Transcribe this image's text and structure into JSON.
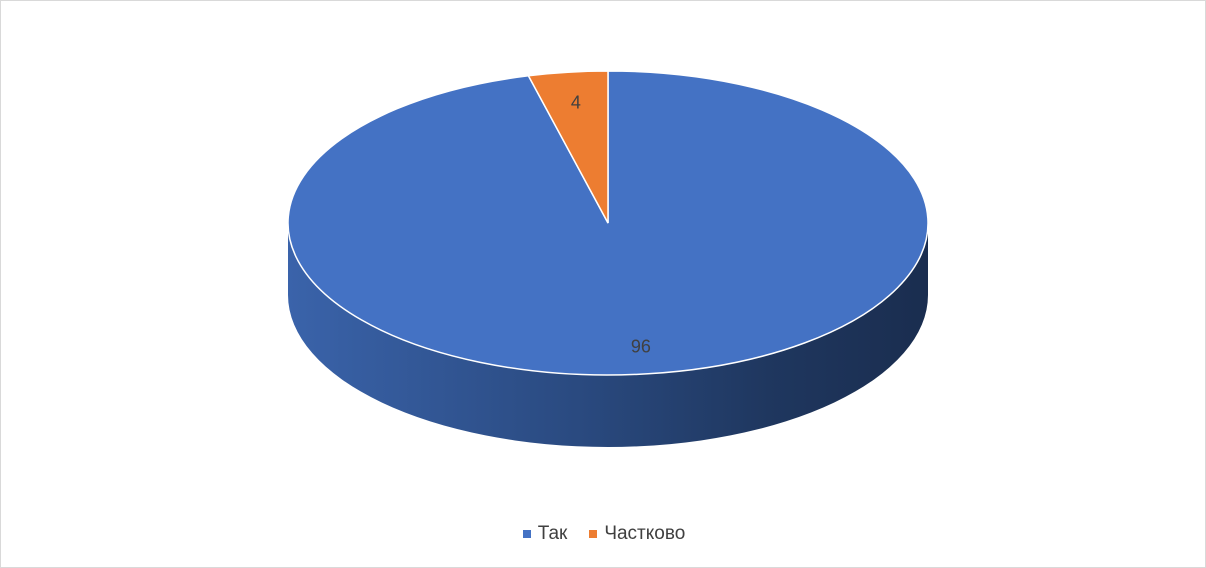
{
  "chart_data": {
    "type": "pie",
    "style": "3d",
    "title": "",
    "categories": [
      "Так",
      "Частково"
    ],
    "values": [
      96,
      4
    ],
    "data_labels": [
      "96",
      "4"
    ],
    "colors": [
      "#4472C4",
      "#ED7D31"
    ],
    "legend": {
      "placement": "bottom",
      "entries": [
        "Так",
        "Частково"
      ]
    }
  }
}
